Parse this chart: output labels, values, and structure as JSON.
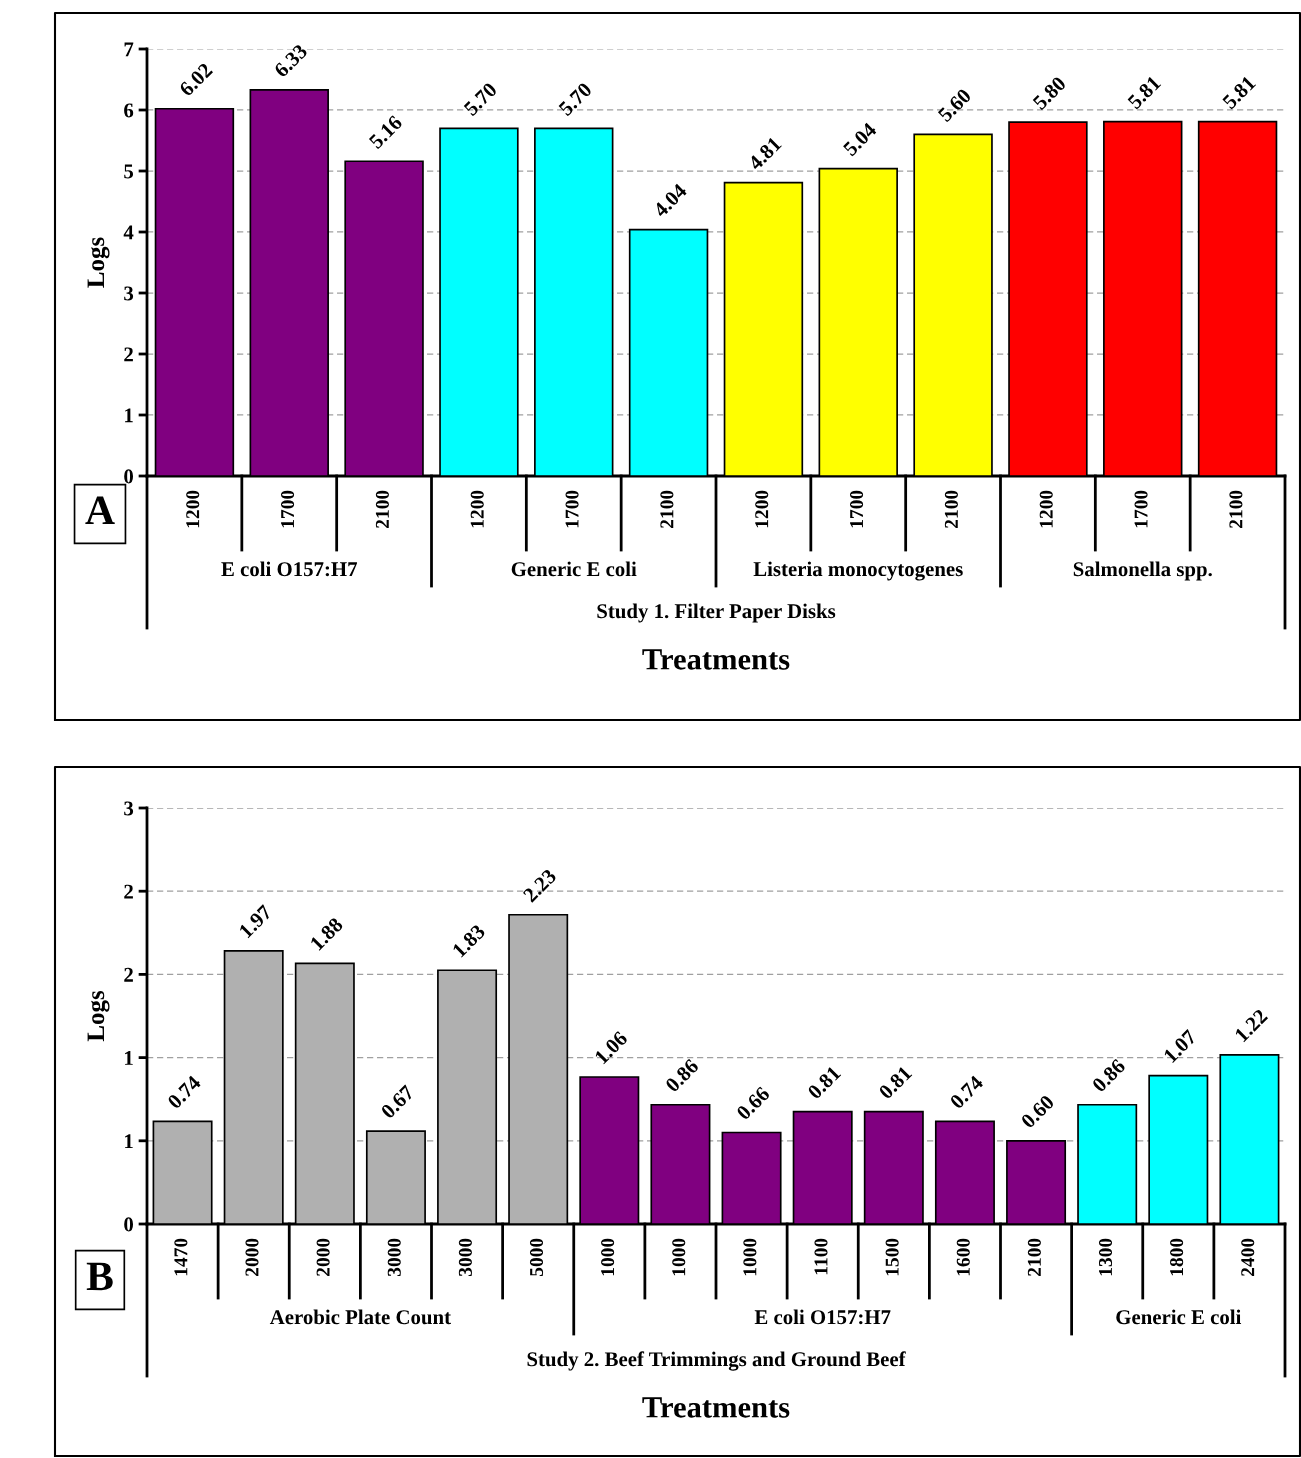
{
  "chart_data": [
    {
      "type": "bar",
      "ylabel": "Logs",
      "xlabel": "Treatments",
      "categories": [
        "1200",
        "1700",
        "2100",
        "1200",
        "1700",
        "2100",
        "1200",
        "1700",
        "2100",
        "1200",
        "1700",
        "2100"
      ],
      "series": [
        {
          "color": "#800080",
          "values": [
            6.02,
            6.33,
            5.16,
            null,
            null,
            null,
            null,
            null,
            null,
            null,
            null,
            null
          ]
        },
        {
          "color": "#00ffff",
          "values": [
            null,
            null,
            null,
            5.7,
            5.7,
            4.04,
            null,
            null,
            null,
            null,
            null,
            null
          ]
        },
        {
          "color": "#ffff00",
          "values": [
            null,
            null,
            null,
            null,
            null,
            null,
            4.81,
            5.04,
            5.6,
            null,
            null,
            null
          ]
        },
        {
          "color": "#ff0000",
          "values": [
            null,
            null,
            null,
            null,
            null,
            null,
            null,
            null,
            null,
            5.8,
            5.81,
            5.81
          ]
        }
      ],
      "value_labels": [
        "6.02",
        "6.33",
        "5.16",
        "5.70",
        "5.70",
        "4.04",
        "4.81",
        "5.04",
        "5.60",
        "5.80",
        "5.81",
        "5.81"
      ],
      "ylim": [
        0,
        7
      ],
      "yticks": [
        0,
        1,
        2,
        3,
        4,
        5,
        6,
        7
      ],
      "grid": "y",
      "annotations": [
        "E coli O157:H7",
        "Generic E coli",
        "Listeria monocytogenes",
        "Salmonella spp.",
        "Study 1. Filter Paper Disks",
        "A"
      ]
    },
    {
      "type": "bar",
      "ylabel": "Logs",
      "xlabel": "Treatments",
      "categories": [
        "1470",
        "2000",
        "2000",
        "3000",
        "3000",
        "5000",
        "1000",
        "1000",
        "1000",
        "1100",
        "1500",
        "1600",
        "2100",
        "1300",
        "1800",
        "2400"
      ],
      "series": [
        {
          "color": "#b0b0b0",
          "values": [
            0.74,
            1.97,
            1.88,
            0.67,
            1.83,
            2.23,
            null,
            null,
            null,
            null,
            null,
            null,
            null,
            null,
            null,
            null
          ]
        },
        {
          "color": "#800080",
          "values": [
            null,
            null,
            null,
            null,
            null,
            null,
            1.06,
            0.86,
            0.66,
            0.81,
            0.81,
            0.74,
            0.6,
            null,
            null,
            null
          ]
        },
        {
          "color": "#00ffff",
          "values": [
            null,
            null,
            null,
            null,
            null,
            null,
            null,
            null,
            null,
            null,
            null,
            null,
            null,
            0.86,
            1.07,
            1.22
          ]
        }
      ],
      "value_labels": [
        "0.74",
        "1.97",
        "1.88",
        "0.67",
        "1.83",
        "2.23",
        "1.06",
        "0.86",
        "0.66",
        "0.81",
        "0.81",
        "0.74",
        "0.60",
        "0.86",
        "1.07",
        "1.22"
      ],
      "ylim": [
        0,
        3
      ],
      "yticks": [
        0,
        {
          "value": 0.6,
          "label": "1"
        },
        {
          "value": 1.2,
          "label": "1"
        },
        {
          "value": 1.8,
          "label": "2"
        },
        {
          "value": 2.4,
          "label": "2"
        },
        3
      ],
      "grid": "y",
      "annotations": [
        "Aerobic Plate Count",
        "E coli O157:H7",
        "Generic E coli",
        "Study 2. Beef Trimmings and Ground Beef",
        "B"
      ]
    }
  ]
}
